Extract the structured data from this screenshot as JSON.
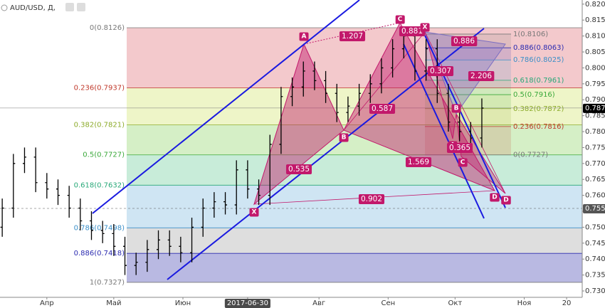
{
  "header": "AUD/USD, Д,",
  "chart_data": {
    "type": "ohlc",
    "color": "#000000",
    "x": [
      "2017-03-12",
      "2017-03-17",
      "2017-03-22",
      "2017-03-27",
      "2017-04-01",
      "2017-04-06",
      "2017-04-11",
      "2017-04-16",
      "2017-04-21",
      "2017-04-26",
      "2017-05-01",
      "2017-05-06",
      "2017-05-11",
      "2017-05-16",
      "2017-05-21",
      "2017-05-26",
      "2017-05-31",
      "2017-06-05",
      "2017-06-10",
      "2017-06-15",
      "2017-06-20",
      "2017-06-25",
      "2017-06-30",
      "2017-07-05",
      "2017-07-10",
      "2017-07-15",
      "2017-07-20",
      "2017-07-25",
      "2017-07-30",
      "2017-08-04",
      "2017-08-09",
      "2017-08-14",
      "2017-08-19",
      "2017-08-24",
      "2017-08-29",
      "2017-09-03",
      "2017-09-08",
      "2017-09-13",
      "2017-09-18",
      "2017-09-23",
      "2017-09-28",
      "2017-10-03",
      "2017-10-08",
      "2017-10-13"
    ],
    "open": [
      0.75,
      0.756,
      0.77,
      0.772,
      0.764,
      0.762,
      0.76,
      0.756,
      0.752,
      0.749,
      0.748,
      0.744,
      0.738,
      0.739,
      0.743,
      0.746,
      0.744,
      0.742,
      0.75,
      0.756,
      0.758,
      0.757,
      0.768,
      0.762,
      0.76,
      0.776,
      0.791,
      0.794,
      0.799,
      0.796,
      0.792,
      0.786,
      0.788,
      0.792,
      0.795,
      0.8,
      0.806,
      0.81,
      0.799,
      0.806,
      0.792,
      0.783,
      0.78,
      0.778
    ],
    "high": [
      0.759,
      0.773,
      0.775,
      0.775,
      0.767,
      0.765,
      0.763,
      0.759,
      0.755,
      0.752,
      0.751,
      0.747,
      0.742,
      0.746,
      0.749,
      0.749,
      0.747,
      0.753,
      0.759,
      0.761,
      0.761,
      0.771,
      0.771,
      0.765,
      0.779,
      0.794,
      0.797,
      0.802,
      0.802,
      0.799,
      0.795,
      0.791,
      0.795,
      0.798,
      0.803,
      0.809,
      0.813,
      0.813,
      0.809,
      0.809,
      0.795,
      0.786,
      0.783,
      0.7904
    ],
    "low": [
      0.747,
      0.753,
      0.767,
      0.761,
      0.759,
      0.757,
      0.753,
      0.749,
      0.746,
      0.745,
      0.741,
      0.735,
      0.735,
      0.736,
      0.74,
      0.741,
      0.739,
      0.739,
      0.747,
      0.753,
      0.754,
      0.754,
      0.759,
      0.757,
      0.757,
      0.773,
      0.788,
      0.791,
      0.793,
      0.789,
      0.783,
      0.783,
      0.785,
      0.789,
      0.792,
      0.797,
      0.803,
      0.796,
      0.796,
      0.789,
      0.78,
      0.777,
      0.775,
      0.775
    ],
    "close": [
      0.756,
      0.77,
      0.772,
      0.764,
      0.762,
      0.76,
      0.756,
      0.752,
      0.749,
      0.748,
      0.744,
      0.738,
      0.739,
      0.743,
      0.746,
      0.744,
      0.742,
      0.75,
      0.756,
      0.758,
      0.757,
      0.768,
      0.762,
      0.76,
      0.776,
      0.791,
      0.794,
      0.799,
      0.796,
      0.792,
      0.786,
      0.788,
      0.792,
      0.795,
      0.8,
      0.806,
      0.81,
      0.799,
      0.806,
      0.792,
      0.783,
      0.78,
      0.778,
      0.7874
    ],
    "xlim": [
      "2017-03-11",
      "2017-11-27"
    ],
    "xticks": [
      {
        "value": "2017-04-01",
        "label": "Апр"
      },
      {
        "value": "2017-05-01",
        "label": "Май"
      },
      {
        "value": "2017-06-01",
        "label": "Июн"
      },
      {
        "value": "2017-06-30",
        "label": "2017-06-30"
      },
      {
        "value": "2017-08-01",
        "label": "Авг"
      },
      {
        "value": "2017-09-01",
        "label": "Сен"
      },
      {
        "value": "2017-10-01",
        "label": "Окт"
      },
      {
        "value": "2017-11-01",
        "label": "Ноя"
      },
      {
        "value": "2017-11-20",
        "label": "20"
      }
    ],
    "ylim": [
      0.728,
      0.8213
    ],
    "yticks": [
      {
        "value": 0.73,
        "label": "0.7300"
      },
      {
        "value": 0.735,
        "label": "0.7350"
      },
      {
        "value": 0.74,
        "label": "0.7400"
      },
      {
        "value": 0.745,
        "label": "0.7450"
      },
      {
        "value": 0.75,
        "label": "0.7500"
      },
      {
        "value": 0.755,
        "label": "0.7550"
      },
      {
        "value": 0.76,
        "label": "0.7600"
      },
      {
        "value": 0.765,
        "label": "0.7650"
      },
      {
        "value": 0.77,
        "label": "0.7700"
      },
      {
        "value": 0.775,
        "label": "0.7750"
      },
      {
        "value": 0.78,
        "label": "0.7800"
      },
      {
        "value": 0.785,
        "label": "0.7850"
      },
      {
        "value": 0.79,
        "label": "0.7900"
      },
      {
        "value": 0.795,
        "label": "0.7950"
      },
      {
        "value": 0.8,
        "label": "0.8000"
      },
      {
        "value": 0.805,
        "label": "0.8050"
      },
      {
        "value": 0.81,
        "label": "0.8100"
      },
      {
        "value": 0.815,
        "label": "0.8150"
      },
      {
        "value": 0.82,
        "label": "0.8200"
      }
    ],
    "last_price": {
      "value": 0.7874,
      "label": "0.7874"
    },
    "crosshair_price": {
      "value": 0.7559,
      "label": "0.7559"
    },
    "fib_left": [
      {
        "price": 0.8126,
        "label": "0(0.8126)",
        "color": "#787878"
      },
      {
        "price": 0.7937,
        "label": "0.236(0.7937)",
        "color": "#c0392b"
      },
      {
        "price": 0.7821,
        "label": "0.382(0.7821)",
        "color": "#8cab2b"
      },
      {
        "price": 0.7727,
        "label": "0.5(0.7727)",
        "color": "#3aa83a"
      },
      {
        "price": 0.7632,
        "label": "0.618(0.7632)",
        "color": "#28a878"
      },
      {
        "price": 0.7498,
        "label": "0.786(0.7498)",
        "color": "#3a8fc8"
      },
      {
        "price": 0.7418,
        "label": "0.886(0.7418)",
        "color": "#2b2bb0"
      },
      {
        "price": 0.7327,
        "label": "1(0.7327)",
        "color": "#787878"
      }
    ],
    "fib_left_fills": [
      "#f3c9cc",
      "#eef5c8",
      "#d5efc6",
      "#c8ecd9",
      "#cfe5f3",
      "#dedede",
      "#b9b9e2"
    ],
    "fib_right": [
      {
        "price": 0.8106,
        "label": "1(0.8106)",
        "color": "#787878"
      },
      {
        "price": 0.8063,
        "label": "0.886(0.8063)",
        "color": "#2b2bb0"
      },
      {
        "price": 0.8025,
        "label": "0.786(0.8025)",
        "color": "#3a8fc8"
      },
      {
        "price": 0.7961,
        "label": "0.618(0.7961)",
        "color": "#28a878"
      },
      {
        "price": 0.7916,
        "label": "0.5(0.7916)",
        "color": "#3aa83a"
      },
      {
        "price": 0.7872,
        "label": "0.382(0.7872)",
        "color": "#8cab2b"
      },
      {
        "price": 0.7816,
        "label": "0.236(0.7816)",
        "color": "#c0392b"
      },
      {
        "price": 0.7727,
        "label": "0(0.7727)",
        "color": "#787878"
      }
    ],
    "patterns": [
      {
        "points": [
          "X",
          "A",
          "B",
          "C",
          "D"
        ],
        "ratios": [
          1.207,
          0.881,
          0.587,
          0.535,
          0.902
        ]
      },
      {
        "points": [
          "X",
          "A",
          "B",
          "C",
          "D"
        ],
        "ratios": [
          0.886,
          0.307,
          2.206,
          0.365,
          1.569
        ]
      }
    ]
  }
}
